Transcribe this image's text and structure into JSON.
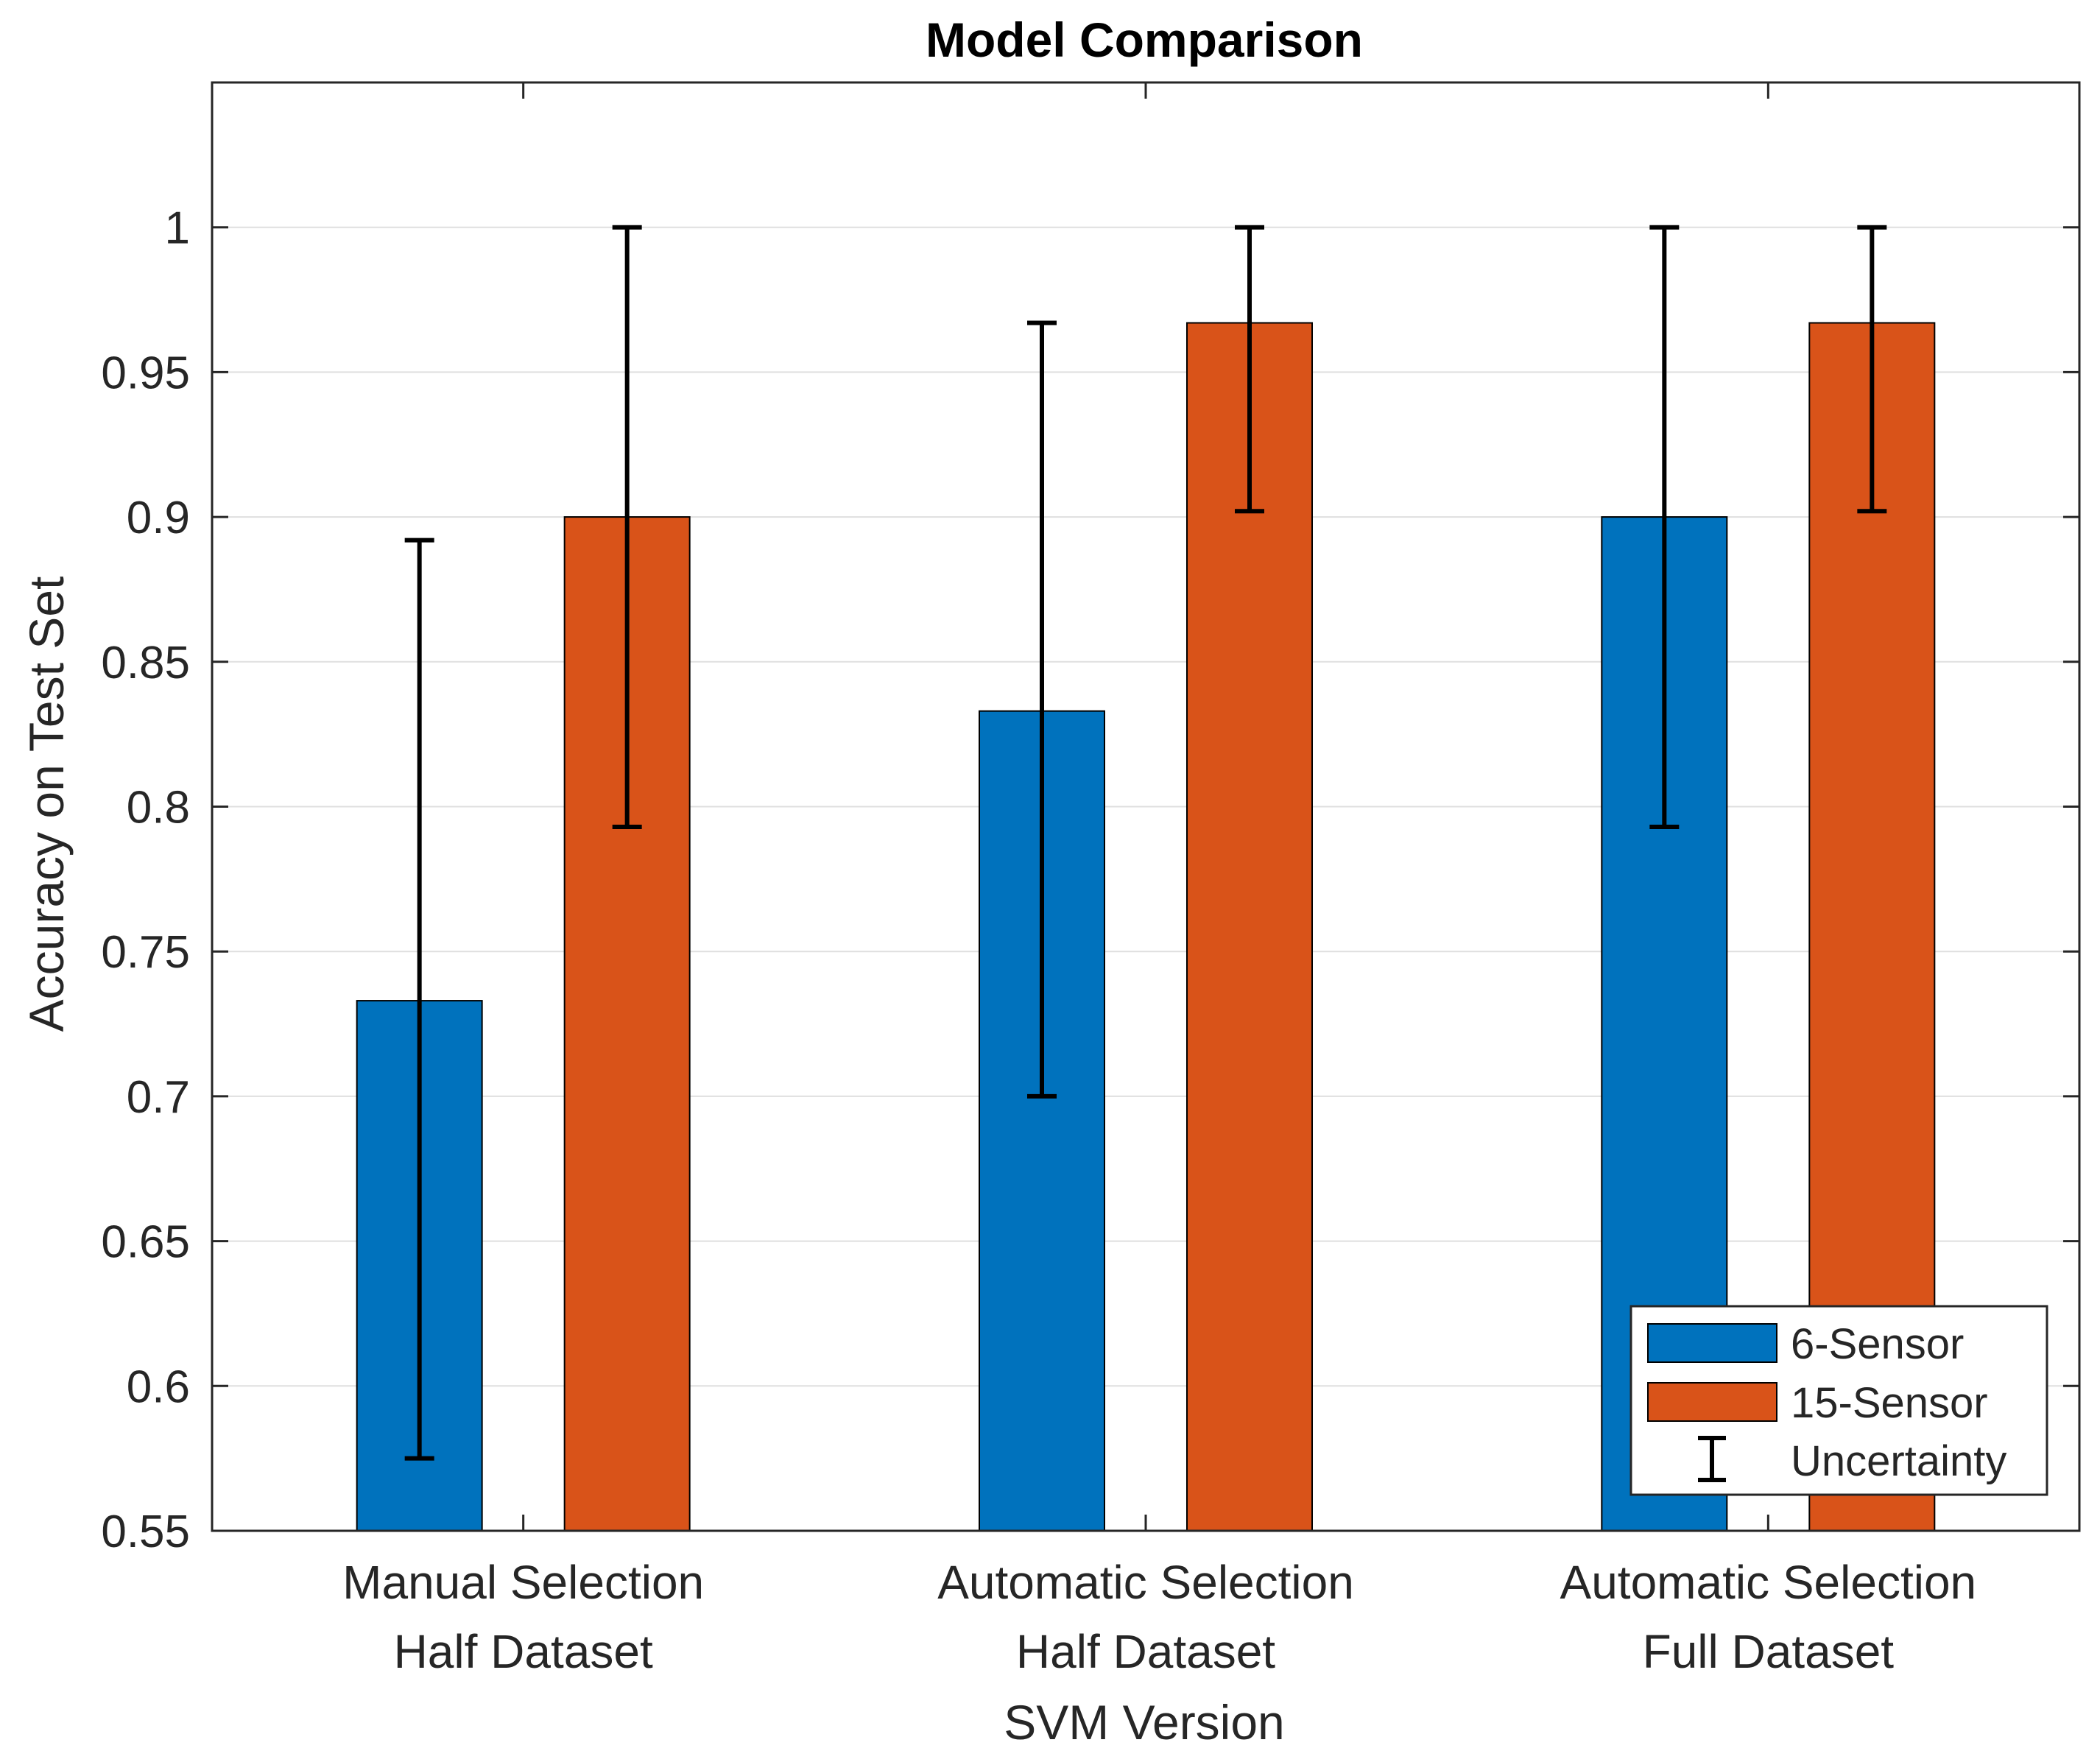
{
  "colors": {
    "series_0": "#0072BD",
    "series_1": "#D95319",
    "grid": "#DFDFDF",
    "axis": "#262626",
    "errorbar": "#000000"
  },
  "chart_data": {
    "type": "bar",
    "title": "Model Comparison",
    "xlabel": "SVM Version",
    "ylabel": "Accuracy on Test Set",
    "ylim": [
      0.55,
      1.05
    ],
    "yticks": [
      0.55,
      0.6,
      0.65,
      0.7,
      0.75,
      0.8,
      0.85,
      0.9,
      0.95,
      1
    ],
    "ytick_labels": [
      "0.55",
      "0.6",
      "0.65",
      "0.7",
      "0.75",
      "0.8",
      "0.85",
      "0.9",
      "0.95",
      "1"
    ],
    "grid": true,
    "categories": [
      [
        "Manual Selection",
        "Half Dataset"
      ],
      [
        "Automatic Selection",
        "Half Dataset"
      ],
      [
        "Automatic Selection",
        "Full Dataset"
      ]
    ],
    "series": [
      {
        "name": "6-Sensor",
        "values": [
          0.733,
          0.833,
          0.9
        ],
        "error_low": [
          0.575,
          0.7,
          0.793
        ],
        "error_high": [
          0.892,
          0.967,
          1.0
        ]
      },
      {
        "name": "15-Sensor",
        "values": [
          0.9,
          0.967,
          0.967
        ],
        "error_low": [
          0.793,
          0.902,
          0.902
        ],
        "error_high": [
          1.0,
          1.0,
          1.0
        ]
      }
    ],
    "legend": {
      "position": "bottom-right",
      "entries": [
        "6-Sensor",
        "15-Sensor",
        "Uncertainty"
      ]
    }
  }
}
